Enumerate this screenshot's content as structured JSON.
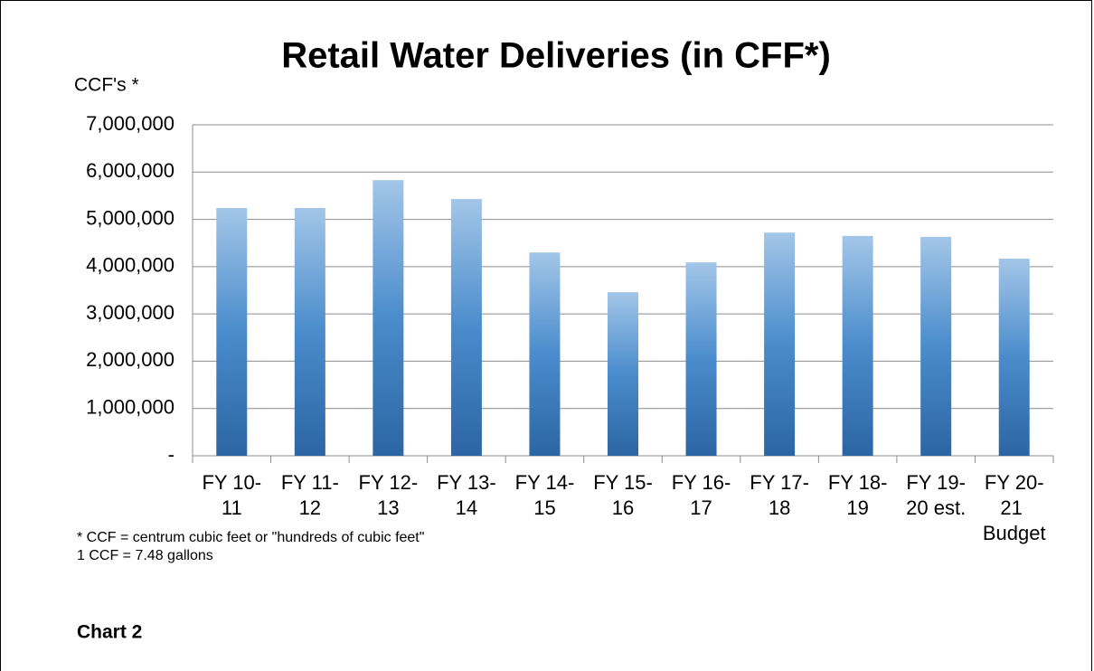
{
  "chart_data": {
    "type": "bar",
    "title": "Retail Water Deliveries (in CFF*)",
    "y_label": "CCF's *",
    "footnotes": [
      "* CCF = centrum cubic feet or \"hundreds of cubic feet\"",
      "1 CCF = 7.48 gallons"
    ],
    "caption": "Chart 2",
    "categories": [
      "FY 10-11",
      "FY 11-12",
      "FY 12-13",
      "FY 13-14",
      "FY 14-15",
      "FY 15-16",
      "FY 16-17",
      "FY 17-18",
      "FY 18-19",
      "FY 19-20 est.",
      "FY 20-21 Budget"
    ],
    "values": [
      5240000,
      5240000,
      5830000,
      5430000,
      4300000,
      3460000,
      4090000,
      4720000,
      4650000,
      4630000,
      4170000
    ],
    "color": "#4a8ccc",
    "ylim": [
      0,
      7000000
    ],
    "yticks": [
      {
        "value": 0,
        "label": "-"
      },
      {
        "value": 1000000,
        "label": "1,000,000"
      },
      {
        "value": 2000000,
        "label": "2,000,000"
      },
      {
        "value": 3000000,
        "label": "3,000,000"
      },
      {
        "value": 4000000,
        "label": "4,000,000"
      },
      {
        "value": 5000000,
        "label": "5,000,000"
      },
      {
        "value": 6000000,
        "label": "6,000,000"
      },
      {
        "value": 7000000,
        "label": "7,000,000"
      }
    ],
    "grid": true
  }
}
